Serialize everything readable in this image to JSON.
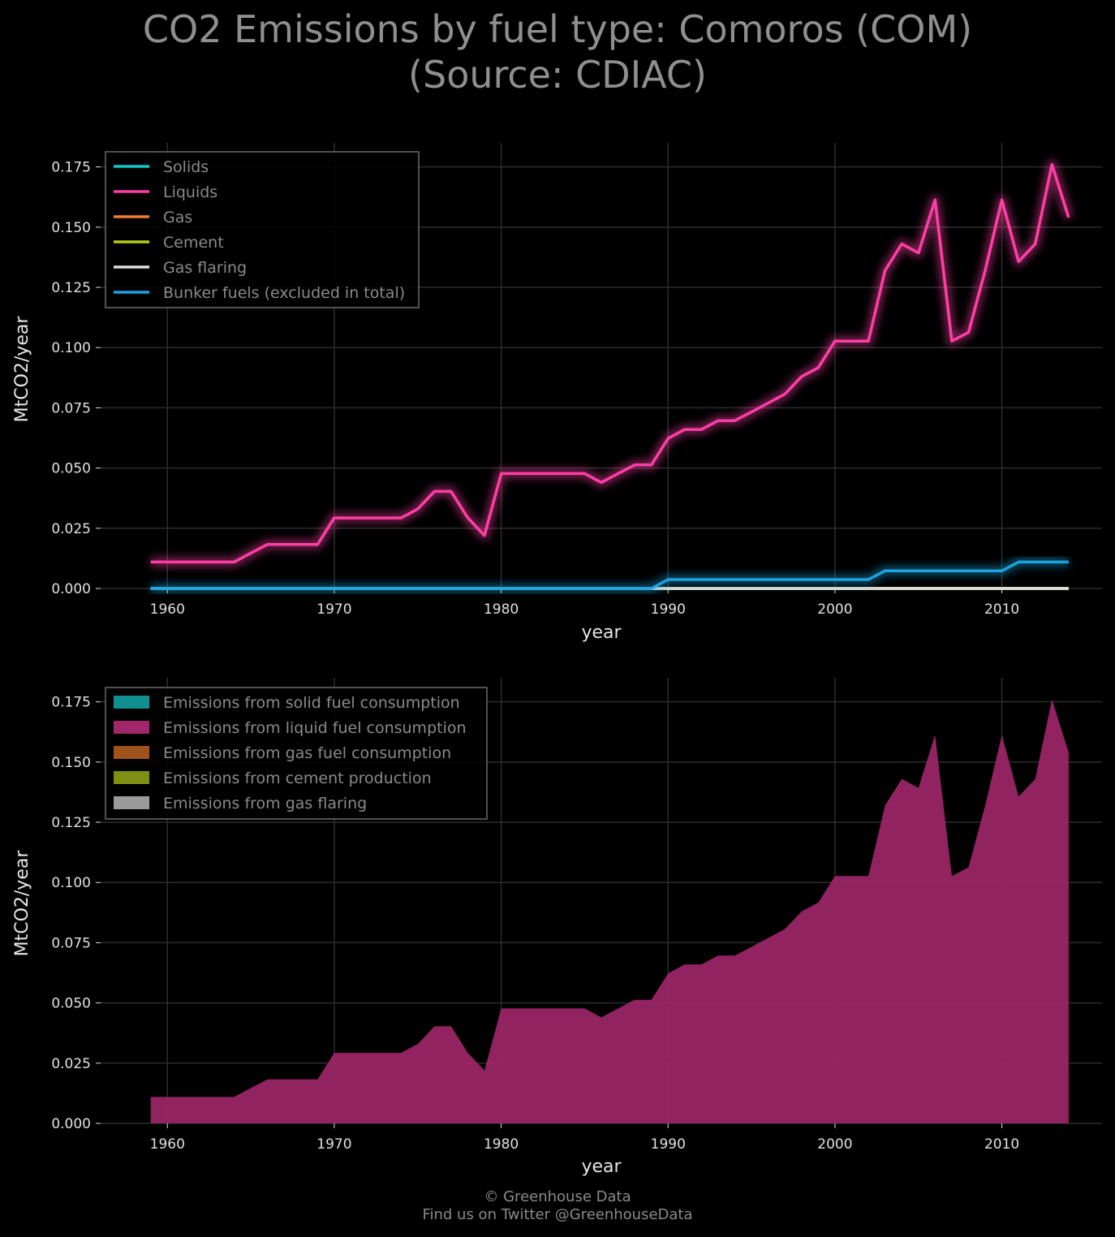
{
  "title": {
    "line1": "CO2 Emissions by fuel type: Comoros (COM)",
    "line2": "(Source: CDIAC)"
  },
  "footer": {
    "line1": "© Greenhouse Data",
    "line2": "Find us on Twitter @GreenhouseData"
  },
  "colors": {
    "solids": "#11c7c9",
    "liquids": "#ff3ea5",
    "gas": "#f07d2e",
    "cement": "#b5cc18",
    "gas_flaring": "#e0e0e0",
    "bunker": "#1aa3e0",
    "area_solid": "#0f8f8f",
    "area_liquid": "#a0276a",
    "area_gas": "#a0521c",
    "area_cement": "#7f8f12",
    "area_flaring": "#9a9a9a",
    "grid": "#2c2c2c"
  },
  "chart_data": [
    {
      "type": "line",
      "xlabel": "year",
      "ylabel": "MtCO2/year",
      "xlim": [
        1956,
        2016
      ],
      "ylim": [
        0,
        0.185
      ],
      "xticks": [
        "1960",
        "1970",
        "1980",
        "1990",
        "2000",
        "2010"
      ],
      "yticks": [
        "0.000",
        "0.025",
        "0.050",
        "0.075",
        "0.100",
        "0.125",
        "0.150",
        "0.175"
      ],
      "grid": true,
      "legend_position": "top-left",
      "x": [
        1959,
        1960,
        1961,
        1962,
        1963,
        1964,
        1965,
        1966,
        1967,
        1968,
        1969,
        1970,
        1971,
        1972,
        1973,
        1974,
        1975,
        1976,
        1977,
        1978,
        1979,
        1980,
        1981,
        1982,
        1983,
        1984,
        1985,
        1986,
        1987,
        1988,
        1989,
        1990,
        1991,
        1992,
        1993,
        1994,
        1995,
        1996,
        1997,
        1998,
        1999,
        2000,
        2001,
        2002,
        2003,
        2004,
        2005,
        2006,
        2007,
        2008,
        2009,
        2010,
        2011,
        2012,
        2013,
        2014
      ],
      "series": [
        {
          "name": "Solids",
          "values": [
            0,
            0,
            0,
            0,
            0,
            0,
            0,
            0,
            0,
            0,
            0,
            0,
            0,
            0,
            0,
            0,
            0,
            0,
            0,
            0,
            0,
            0,
            0,
            0,
            0,
            0,
            0,
            0,
            0,
            0,
            0,
            0,
            0,
            0,
            0,
            0,
            0,
            0,
            0,
            0,
            0,
            0,
            0,
            0,
            0,
            0,
            0,
            0,
            0,
            0,
            0,
            0,
            0,
            0,
            0,
            0
          ]
        },
        {
          "name": "Liquids",
          "values": [
            0.011,
            0.011,
            0.011,
            0.011,
            0.011,
            0.011,
            0.0147,
            0.0183,
            0.0183,
            0.0183,
            0.0183,
            0.0293,
            0.0293,
            0.0293,
            0.0293,
            0.0293,
            0.033,
            0.0403,
            0.0403,
            0.0293,
            0.022,
            0.0477,
            0.0477,
            0.0477,
            0.0477,
            0.0477,
            0.0477,
            0.044,
            0.0477,
            0.0513,
            0.0513,
            0.0623,
            0.066,
            0.066,
            0.0697,
            0.0697,
            0.0733,
            0.077,
            0.0807,
            0.088,
            0.0917,
            0.1027,
            0.1027,
            0.1027,
            0.132,
            0.143,
            0.1393,
            0.1613,
            0.1027,
            0.1063,
            0.132,
            0.1613,
            0.1357,
            0.143,
            0.176,
            0.154
          ]
        },
        {
          "name": "Gas",
          "values": [
            0,
            0,
            0,
            0,
            0,
            0,
            0,
            0,
            0,
            0,
            0,
            0,
            0,
            0,
            0,
            0,
            0,
            0,
            0,
            0,
            0,
            0,
            0,
            0,
            0,
            0,
            0,
            0,
            0,
            0,
            0,
            0,
            0,
            0,
            0,
            0,
            0,
            0,
            0,
            0,
            0,
            0,
            0,
            0,
            0,
            0,
            0,
            0,
            0,
            0,
            0,
            0,
            0,
            0,
            0,
            0
          ]
        },
        {
          "name": "Cement",
          "values": [
            0,
            0,
            0,
            0,
            0,
            0,
            0,
            0,
            0,
            0,
            0,
            0,
            0,
            0,
            0,
            0,
            0,
            0,
            0,
            0,
            0,
            0,
            0,
            0,
            0,
            0,
            0,
            0,
            0,
            0,
            0,
            0,
            0,
            0,
            0,
            0,
            0,
            0,
            0,
            0,
            0,
            0,
            0,
            0,
            0,
            0,
            0,
            0,
            0,
            0,
            0,
            0,
            0,
            0,
            0,
            0
          ]
        },
        {
          "name": "Gas flaring",
          "values": [
            0,
            0,
            0,
            0,
            0,
            0,
            0,
            0,
            0,
            0,
            0,
            0,
            0,
            0,
            0,
            0,
            0,
            0,
            0,
            0,
            0,
            0,
            0,
            0,
            0,
            0,
            0,
            0,
            0,
            0,
            0,
            0,
            0,
            0,
            0,
            0,
            0,
            0,
            0,
            0,
            0,
            0,
            0,
            0,
            0,
            0,
            0,
            0,
            0,
            0,
            0,
            0,
            0,
            0,
            0,
            0
          ]
        },
        {
          "name": "Bunker fuels (excluded in total)",
          "values": [
            0,
            0,
            0,
            0,
            0,
            0,
            0,
            0,
            0,
            0,
            0,
            0,
            0,
            0,
            0,
            0,
            0,
            0,
            0,
            0,
            0,
            0,
            0,
            0,
            0,
            0,
            0,
            0,
            0,
            0,
            0,
            0.0037,
            0.0037,
            0.0037,
            0.0037,
            0.0037,
            0.0037,
            0.0037,
            0.0037,
            0.0037,
            0.0037,
            0.0037,
            0.0037,
            0.0037,
            0.0073,
            0.0073,
            0.0073,
            0.0073,
            0.0073,
            0.0073,
            0.0073,
            0.0073,
            0.011,
            0.011,
            0.011,
            0.011
          ]
        }
      ]
    },
    {
      "type": "area",
      "xlabel": "year",
      "ylabel": "MtCO2/year",
      "xlim": [
        1956,
        2016
      ],
      "ylim": [
        0,
        0.185
      ],
      "xticks": [
        "1960",
        "1970",
        "1980",
        "1990",
        "2000",
        "2010"
      ],
      "yticks": [
        "0.000",
        "0.025",
        "0.050",
        "0.075",
        "0.100",
        "0.125",
        "0.150",
        "0.175"
      ],
      "grid": true,
      "stacked": true,
      "legend_position": "top-left",
      "x": [
        1959,
        1960,
        1961,
        1962,
        1963,
        1964,
        1965,
        1966,
        1967,
        1968,
        1969,
        1970,
        1971,
        1972,
        1973,
        1974,
        1975,
        1976,
        1977,
        1978,
        1979,
        1980,
        1981,
        1982,
        1983,
        1984,
        1985,
        1986,
        1987,
        1988,
        1989,
        1990,
        1991,
        1992,
        1993,
        1994,
        1995,
        1996,
        1997,
        1998,
        1999,
        2000,
        2001,
        2002,
        2003,
        2004,
        2005,
        2006,
        2007,
        2008,
        2009,
        2010,
        2011,
        2012,
        2013,
        2014
      ],
      "series": [
        {
          "name": "Emissions from solid fuel consumption",
          "values": [
            0,
            0,
            0,
            0,
            0,
            0,
            0,
            0,
            0,
            0,
            0,
            0,
            0,
            0,
            0,
            0,
            0,
            0,
            0,
            0,
            0,
            0,
            0,
            0,
            0,
            0,
            0,
            0,
            0,
            0,
            0,
            0,
            0,
            0,
            0,
            0,
            0,
            0,
            0,
            0,
            0,
            0,
            0,
            0,
            0,
            0,
            0,
            0,
            0,
            0,
            0,
            0,
            0,
            0,
            0,
            0
          ]
        },
        {
          "name": "Emissions from liquid fuel consumption",
          "values": [
            0.011,
            0.011,
            0.011,
            0.011,
            0.011,
            0.011,
            0.0147,
            0.0183,
            0.0183,
            0.0183,
            0.0183,
            0.0293,
            0.0293,
            0.0293,
            0.0293,
            0.0293,
            0.033,
            0.0403,
            0.0403,
            0.0293,
            0.022,
            0.0477,
            0.0477,
            0.0477,
            0.0477,
            0.0477,
            0.0477,
            0.044,
            0.0477,
            0.0513,
            0.0513,
            0.0623,
            0.066,
            0.066,
            0.0697,
            0.0697,
            0.0733,
            0.077,
            0.0807,
            0.088,
            0.0917,
            0.1027,
            0.1027,
            0.1027,
            0.132,
            0.143,
            0.1393,
            0.1613,
            0.1027,
            0.1063,
            0.132,
            0.1613,
            0.1357,
            0.143,
            0.176,
            0.154
          ]
        },
        {
          "name": "Emissions from gas fuel consumption",
          "values": [
            0,
            0,
            0,
            0,
            0,
            0,
            0,
            0,
            0,
            0,
            0,
            0,
            0,
            0,
            0,
            0,
            0,
            0,
            0,
            0,
            0,
            0,
            0,
            0,
            0,
            0,
            0,
            0,
            0,
            0,
            0,
            0,
            0,
            0,
            0,
            0,
            0,
            0,
            0,
            0,
            0,
            0,
            0,
            0,
            0,
            0,
            0,
            0,
            0,
            0,
            0,
            0,
            0,
            0,
            0,
            0
          ]
        },
        {
          "name": "Emissions from cement production",
          "values": [
            0,
            0,
            0,
            0,
            0,
            0,
            0,
            0,
            0,
            0,
            0,
            0,
            0,
            0,
            0,
            0,
            0,
            0,
            0,
            0,
            0,
            0,
            0,
            0,
            0,
            0,
            0,
            0,
            0,
            0,
            0,
            0,
            0,
            0,
            0,
            0,
            0,
            0,
            0,
            0,
            0,
            0,
            0,
            0,
            0,
            0,
            0,
            0,
            0,
            0,
            0,
            0,
            0,
            0,
            0,
            0
          ]
        },
        {
          "name": "Emissions from gas flaring",
          "values": [
            0,
            0,
            0,
            0,
            0,
            0,
            0,
            0,
            0,
            0,
            0,
            0,
            0,
            0,
            0,
            0,
            0,
            0,
            0,
            0,
            0,
            0,
            0,
            0,
            0,
            0,
            0,
            0,
            0,
            0,
            0,
            0,
            0,
            0,
            0,
            0,
            0,
            0,
            0,
            0,
            0,
            0,
            0,
            0,
            0,
            0,
            0,
            0,
            0,
            0,
            0,
            0,
            0,
            0,
            0,
            0
          ]
        }
      ]
    }
  ]
}
